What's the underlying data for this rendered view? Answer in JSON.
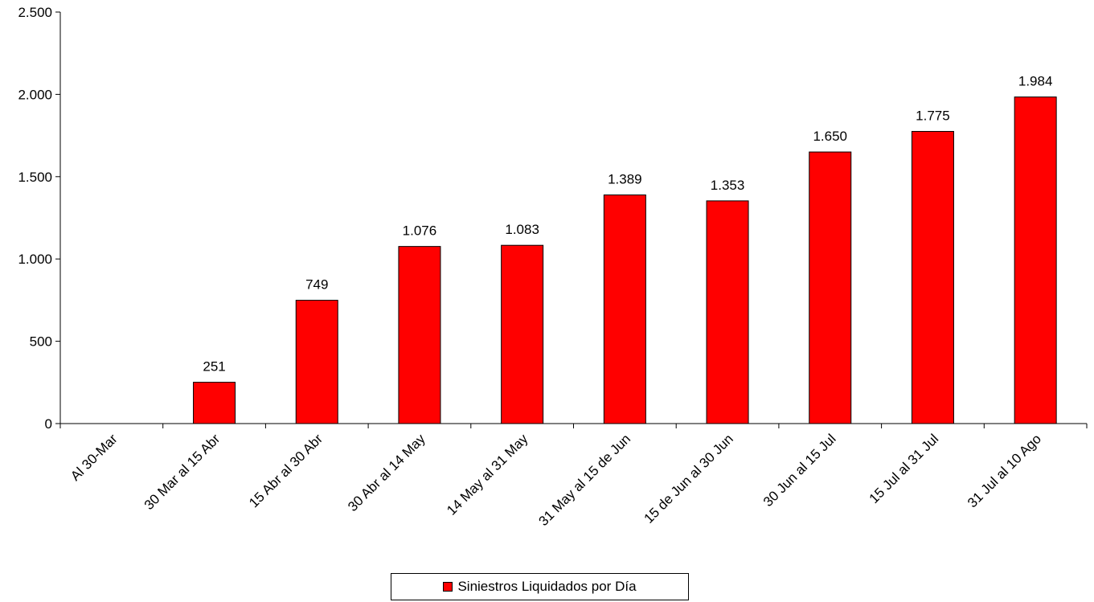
{
  "chart_data": {
    "type": "bar",
    "title": "",
    "xlabel": "",
    "ylabel": "",
    "categories": [
      "Al 30-Mar",
      "30 Mar al 15 Abr",
      "15 Abr al 30 Abr",
      "30 Abr al 14 May",
      "14 May al 31 May",
      "31 May al 15 de Jun",
      "15 de Jun al 30 Jun",
      "30 Jun al 15 Jul",
      "15 Jul al 31 Jul",
      "31 Jul al 10 Ago"
    ],
    "series": [
      {
        "name": "Siniestros Liquidados por Día",
        "values": [
          null,
          251,
          749,
          1076,
          1083,
          1389,
          1353,
          1650,
          1775,
          1984
        ],
        "value_labels": [
          "",
          "251",
          "749",
          "1.076",
          "1.083",
          "1.389",
          "1.353",
          "1.650",
          "1.775",
          "1.984"
        ],
        "color": "#ff0000"
      }
    ],
    "ylim": [
      0,
      2500
    ],
    "yticks": [
      0,
      500,
      1000,
      1500,
      2000,
      2500
    ],
    "ytick_labels": [
      "0",
      "500",
      "1.000",
      "1.500",
      "2.000",
      "2.500"
    ],
    "grid": false,
    "legend_position": "bottom-center"
  },
  "legend": {
    "label": "Siniestros Liquidados por Día"
  },
  "colors": {
    "bar_fill": "#ff0000",
    "bar_stroke": "#000000",
    "axis": "#000000"
  }
}
